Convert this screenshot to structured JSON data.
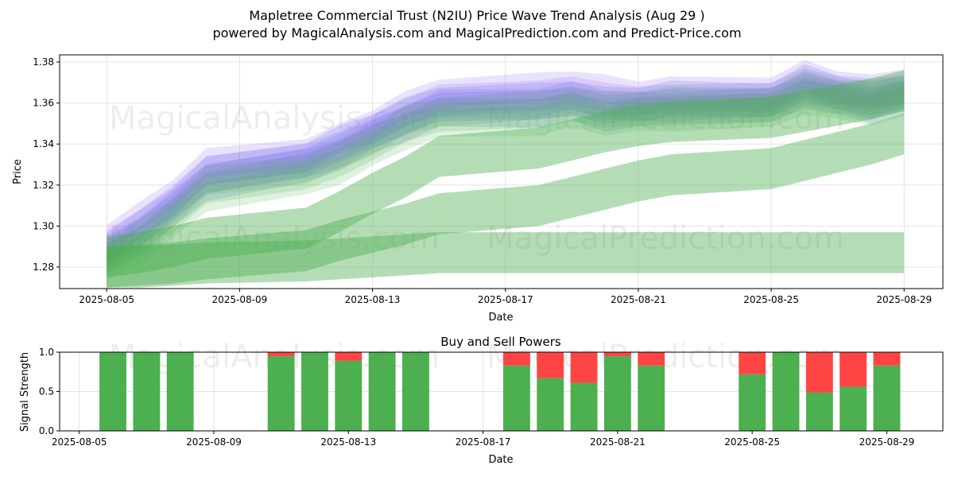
{
  "title": "Mapletree Commercial Trust (N2IU) Price Wave Trend Analysis (Aug 29 )",
  "subtitle": "powered by MagicalAnalysis.com and MagicalPrediction.com and Predict-Price.com",
  "watermarks": [
    "MagicalAnalysis.com",
    "MagicalPrediction.com"
  ],
  "colors": {
    "band_green": "#4caf50",
    "band_blue": "#3b6fd6",
    "band_purple": "#8a5cf6",
    "band_pink": "#e8a0c8",
    "buy": "#4caf50",
    "sell": "#ff4444"
  },
  "chart_data": [
    {
      "type": "area",
      "title": "",
      "xlabel": "Date",
      "ylabel": "Price",
      "x_ticks": [
        "2025-08-05",
        "2025-08-09",
        "2025-08-13",
        "2025-08-17",
        "2025-08-21",
        "2025-08-25",
        "2025-08-29"
      ],
      "y_ticks": [
        "1.28",
        "1.30",
        "1.32",
        "1.34",
        "1.36",
        "1.38"
      ],
      "ylim": [
        1.2695,
        1.3835
      ],
      "xlim": [
        "2025-08-03 14:00",
        "2025-08-30 04:00"
      ],
      "grid": true,
      "x": [
        "2025-08-05",
        "2025-08-06",
        "2025-08-07",
        "2025-08-08",
        "2025-08-11",
        "2025-08-12",
        "2025-08-13",
        "2025-08-14",
        "2025-08-15",
        "2025-08-18",
        "2025-08-19",
        "2025-08-20",
        "2025-08-21",
        "2025-08-22",
        "2025-08-25",
        "2025-08-26",
        "2025-08-27",
        "2025-08-28",
        "2025-08-29"
      ],
      "series": [
        {
          "color": "band_blue",
          "values": [
            1.287,
            1.297,
            1.309,
            1.323,
            1.331,
            1.338,
            1.345,
            1.352,
            1.358,
            1.359,
            1.361,
            1.357,
            1.358,
            1.36,
            1.36,
            1.368,
            1.364,
            1.361,
            1.364
          ]
        },
        {
          "color": "band_purple",
          "values": [
            1.291,
            1.301,
            1.313,
            1.327,
            1.333,
            1.339,
            1.347,
            1.355,
            1.362,
            1.364,
            1.366,
            1.363,
            1.361,
            1.362,
            1.363,
            1.37,
            1.366,
            1.363,
            1.367
          ]
        },
        {
          "color": "band_green",
          "values": [
            1.283,
            1.292,
            1.304,
            1.318,
            1.325,
            1.331,
            1.339,
            1.348,
            1.353,
            1.355,
            1.358,
            1.355,
            1.356,
            1.357,
            1.358,
            1.365,
            1.362,
            1.36,
            1.363
          ]
        },
        {
          "color": "band_green",
          "values": [
            1.285,
            1.287,
            1.29,
            1.294,
            1.299,
            1.307,
            1.316,
            1.324,
            1.334,
            1.338,
            1.342,
            1.346,
            1.349,
            1.351,
            1.353,
            1.356,
            1.359,
            1.362,
            1.366
          ]
        },
        {
          "color": "band_green",
          "values": [
            1.28,
            1.281,
            1.282,
            1.284,
            1.288,
            1.293,
            1.297,
            1.301,
            1.306,
            1.31,
            1.314,
            1.318,
            1.322,
            1.325,
            1.328,
            1.332,
            1.336,
            1.34,
            1.345
          ]
        },
        {
          "color": "band_green",
          "values": [
            1.28,
            1.28,
            1.281,
            1.282,
            1.283,
            1.284,
            1.285,
            1.286,
            1.287,
            1.287,
            1.287,
            1.287,
            1.287,
            1.287,
            1.287,
            1.287,
            1.287,
            1.287,
            1.287
          ]
        }
      ]
    },
    {
      "type": "bar",
      "title": "Buy and Sell Powers",
      "xlabel": "Date",
      "ylabel": "Signal Strength",
      "x_ticks": [
        "2025-08-05",
        "2025-08-09",
        "2025-08-13",
        "2025-08-17",
        "2025-08-21",
        "2025-08-25",
        "2025-08-29"
      ],
      "y_ticks": [
        "0.0",
        "0.5",
        "1.0"
      ],
      "ylim": [
        0,
        1
      ],
      "xlim": [
        "2025-08-04 10:00",
        "2025-08-30 16:00"
      ],
      "grid": true,
      "categories": [
        "2025-08-06",
        "2025-08-07",
        "2025-08-08",
        "2025-08-11",
        "2025-08-12",
        "2025-08-13",
        "2025-08-14",
        "2025-08-15",
        "2025-08-18",
        "2025-08-19",
        "2025-08-20",
        "2025-08-21",
        "2025-08-22",
        "2025-08-25",
        "2025-08-26",
        "2025-08-27",
        "2025-08-28",
        "2025-08-29"
      ],
      "series": [
        {
          "name": "Buy",
          "color": "buy",
          "values": [
            1.0,
            1.0,
            1.0,
            0.95,
            1.0,
            0.89,
            1.0,
            1.0,
            0.83,
            0.67,
            0.61,
            0.95,
            0.83,
            0.72,
            1.0,
            0.49,
            0.56,
            0.83
          ]
        },
        {
          "name": "Sell",
          "color": "sell",
          "values": [
            0.0,
            0.0,
            0.0,
            0.05,
            0.0,
            0.11,
            0.0,
            0.0,
            0.17,
            0.33,
            0.39,
            0.05,
            0.17,
            0.28,
            0.0,
            0.51,
            0.44,
            0.17
          ]
        }
      ]
    }
  ]
}
